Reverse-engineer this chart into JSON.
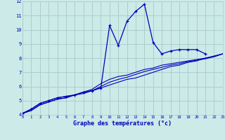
{
  "title": "",
  "xlabel": "Graphe des températures (°c)",
  "bg_color": "#cceae8",
  "grid_color": "#aacfcc",
  "line_color": "#0000bb",
  "x_hours": [
    0,
    1,
    2,
    3,
    4,
    5,
    6,
    7,
    8,
    9,
    10,
    11,
    12,
    13,
    14,
    15,
    16,
    17,
    18,
    19,
    20,
    21,
    22,
    23
  ],
  "temp_main": [
    4.1,
    4.4,
    4.8,
    5.0,
    5.2,
    5.3,
    5.4,
    5.6,
    5.7,
    5.9,
    10.3,
    8.9,
    10.6,
    11.3,
    11.8,
    9.1,
    8.3,
    8.5,
    8.6,
    8.6,
    8.6,
    8.3,
    null,
    null
  ],
  "temp_line2": [
    4.1,
    4.4,
    4.8,
    5.0,
    5.2,
    5.3,
    5.4,
    5.6,
    5.7,
    5.9,
    6.1,
    6.3,
    6.5,
    6.6,
    6.8,
    7.0,
    7.2,
    7.4,
    7.5,
    7.7,
    7.8,
    8.0,
    8.1,
    8.3
  ],
  "temp_line3": [
    4.1,
    4.3,
    4.7,
    4.9,
    5.1,
    5.2,
    5.4,
    5.6,
    5.8,
    6.2,
    6.5,
    6.7,
    6.8,
    7.0,
    7.2,
    7.3,
    7.5,
    7.6,
    7.7,
    7.8,
    7.9,
    8.0,
    8.15,
    8.3
  ],
  "temp_line4": [
    4.1,
    4.3,
    4.7,
    4.9,
    5.1,
    5.2,
    5.4,
    5.5,
    5.7,
    6.0,
    6.3,
    6.5,
    6.65,
    6.85,
    7.05,
    7.2,
    7.35,
    7.5,
    7.6,
    7.75,
    7.85,
    7.95,
    8.1,
    8.3
  ],
  "ylim": [
    4,
    12
  ],
  "xlim": [
    0,
    23
  ],
  "yticks": [
    4,
    5,
    6,
    7,
    8,
    9,
    10,
    11,
    12
  ],
  "xticks": [
    0,
    1,
    2,
    3,
    4,
    5,
    6,
    7,
    8,
    9,
    10,
    11,
    12,
    13,
    14,
    15,
    16,
    17,
    18,
    19,
    20,
    21,
    22,
    23
  ]
}
